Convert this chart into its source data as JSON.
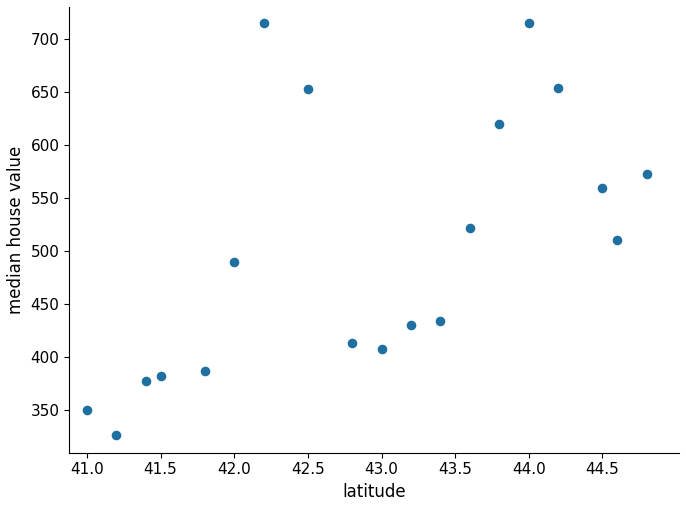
{
  "latitude": [
    41.0,
    41.2,
    41.4,
    41.5,
    41.8,
    42.0,
    42.2,
    42.5,
    42.8,
    43.0,
    43.2,
    43.4,
    43.6,
    43.8,
    44.0,
    44.2,
    44.5,
    44.6,
    44.8
  ],
  "median_house_value": [
    350,
    327,
    378,
    382,
    387,
    490,
    715,
    653,
    413,
    408,
    430,
    434,
    522,
    620,
    715,
    654,
    559,
    510,
    573
  ],
  "dot_color": "#1f6fa0",
  "dot_size": 35,
  "xlabel": "latitude",
  "ylabel": "median house value",
  "xlim": [
    40.88,
    45.02
  ],
  "ylim": [
    310,
    730
  ],
  "xticks": [
    41.0,
    41.5,
    42.0,
    42.5,
    43.0,
    43.5,
    44.0,
    44.5
  ],
  "yticks": [
    350,
    400,
    450,
    500,
    550,
    600,
    650,
    700
  ],
  "xlabel_fontsize": 12,
  "ylabel_fontsize": 12,
  "tick_fontsize": 11,
  "background_color": "#ffffff",
  "figwidth": 6.86,
  "figheight": 5.08,
  "dpi": 100
}
